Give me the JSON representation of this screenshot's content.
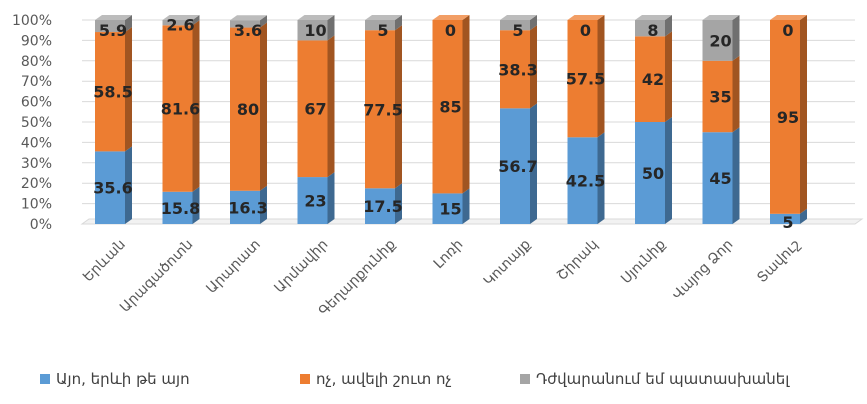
{
  "chart_data": {
    "type": "bar",
    "stacked": "percent",
    "categories": [
      "Երևան",
      "Արագածոտն",
      "Արարատ",
      "Արմավիր",
      "Գեղարքունիք",
      "Լոռի",
      "Կոտայք",
      "Շիրակ",
      "Սյունիք",
      "Վայոց Ձոր",
      "Տավուշ"
    ],
    "series": [
      {
        "name": "Այո, երևի թե այո",
        "color": "#5B9BD5",
        "values": [
          35.6,
          15.8,
          16.3,
          23,
          17.5,
          15,
          56.7,
          42.5,
          50,
          45,
          5
        ]
      },
      {
        "name": "ոչ, ավելի շուտ ոչ",
        "color": "#ED7D31",
        "values": [
          58.5,
          81.6,
          80,
          67,
          77.5,
          85,
          38.3,
          57.5,
          42,
          35,
          95
        ]
      },
      {
        "name": "Դժվարանում եմ պատասխանել",
        "color": "#A5A5A5",
        "values": [
          5.9,
          2.6,
          3.6,
          10,
          5,
          0,
          5,
          0,
          8,
          20,
          0
        ]
      }
    ],
    "ylim": [
      0,
      100
    ],
    "yticks": [
      "0%",
      "10%",
      "20%",
      "30%",
      "40%",
      "50%",
      "60%",
      "70%",
      "80%",
      "90%",
      "100%"
    ],
    "grid": true,
    "legend_position": "bottom"
  }
}
